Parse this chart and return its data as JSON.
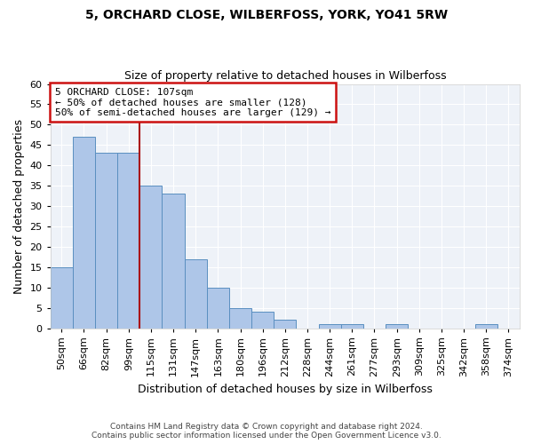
{
  "title": "5, ORCHARD CLOSE, WILBERFOSS, YORK, YO41 5RW",
  "subtitle": "Size of property relative to detached houses in Wilberfoss",
  "xlabel": "Distribution of detached houses by size in Wilberfoss",
  "ylabel": "Number of detached properties",
  "bar_color": "#aec6e8",
  "bar_edge_color": "#5a8fc0",
  "bg_color": "#eef2f8",
  "categories": [
    "50sqm",
    "66sqm",
    "82sqm",
    "99sqm",
    "115sqm",
    "131sqm",
    "147sqm",
    "163sqm",
    "180sqm",
    "196sqm",
    "212sqm",
    "228sqm",
    "244sqm",
    "261sqm",
    "277sqm",
    "293sqm",
    "309sqm",
    "325sqm",
    "342sqm",
    "358sqm",
    "374sqm"
  ],
  "values": [
    15,
    47,
    43,
    43,
    35,
    33,
    17,
    10,
    5,
    4,
    2,
    0,
    1,
    1,
    0,
    1,
    0,
    0,
    0,
    1,
    0
  ],
  "ylim": [
    0,
    60
  ],
  "yticks": [
    0,
    5,
    10,
    15,
    20,
    25,
    30,
    35,
    40,
    45,
    50,
    55,
    60
  ],
  "vline_x": 3.5,
  "vline_color": "#aa1111",
  "annotation_title": "5 ORCHARD CLOSE: 107sqm",
  "annotation_line1": "← 50% of detached houses are smaller (128)",
  "annotation_line2": "50% of semi-detached houses are larger (129) →",
  "annotation_box_color": "#cc1111",
  "footnote1": "Contains HM Land Registry data © Crown copyright and database right 2024.",
  "footnote2": "Contains public sector information licensed under the Open Government Licence v3.0.",
  "title_fontsize": 10,
  "subtitle_fontsize": 9,
  "ylabel_fontsize": 9,
  "xlabel_fontsize": 9,
  "tick_fontsize": 8,
  "annot_fontsize": 8,
  "footnote_fontsize": 6.5
}
